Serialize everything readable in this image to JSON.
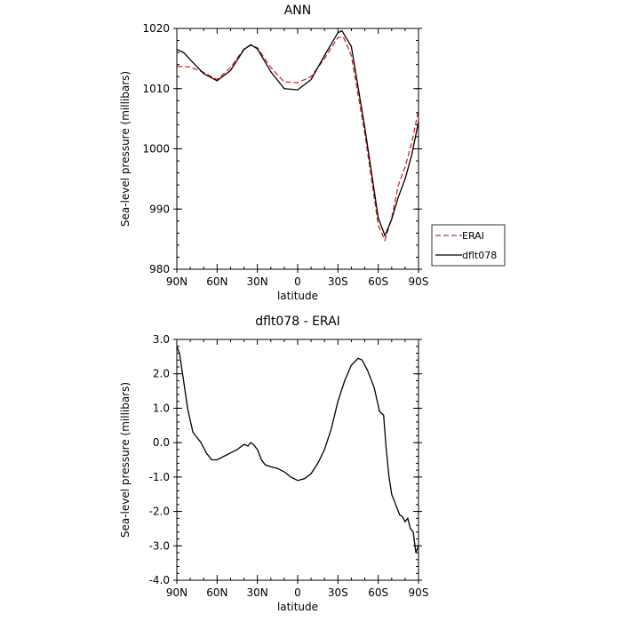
{
  "chart_data": [
    {
      "type": "line",
      "title": "ANN",
      "xlabel": "latitude",
      "ylabel": "Sea-level pressure (millibars)",
      "xlim": [
        -90,
        90
      ],
      "ylim": [
        980,
        1020
      ],
      "x_ticks": [
        -90,
        -60,
        -30,
        0,
        30,
        60,
        90
      ],
      "x_tick_labels": [
        "90N",
        "60N",
        "30N",
        "0",
        "30S",
        "60S",
        "90S"
      ],
      "y_ticks": [
        980,
        990,
        1000,
        1010,
        1020
      ],
      "y_tick_labels": [
        "980",
        "990",
        "1000",
        "1010",
        "1020"
      ],
      "legend": {
        "position": "right",
        "entries": [
          "ERAI",
          "dflt078"
        ]
      },
      "series": [
        {
          "name": "ERAI",
          "color": "#d62728",
          "dash": "dashed",
          "points": [
            [
              -90,
              1013.7
            ],
            [
              -80,
              1013.6
            ],
            [
              -70,
              1012.7
            ],
            [
              -60,
              1011.5
            ],
            [
              -50,
              1013.5
            ],
            [
              -40,
              1016.6
            ],
            [
              -35,
              1017.2
            ],
            [
              -30,
              1016.8
            ],
            [
              -20,
              1013.5
            ],
            [
              -10,
              1011.1
            ],
            [
              0,
              1011.0
            ],
            [
              10,
              1012.0
            ],
            [
              20,
              1015.0
            ],
            [
              30,
              1018.5
            ],
            [
              34,
              1018.6
            ],
            [
              40,
              1015.5
            ],
            [
              50,
              1002.5
            ],
            [
              60,
              987.3
            ],
            [
              65,
              984.8
            ],
            [
              70,
              988.5
            ],
            [
              75,
              994.0
            ],
            [
              80,
              997.0
            ],
            [
              85,
              1001.0
            ],
            [
              90,
              1006.5
            ]
          ]
        },
        {
          "name": "dflt078",
          "color": "#000000",
          "dash": "solid",
          "points": [
            [
              -90,
              1016.5
            ],
            [
              -85,
              1016.0
            ],
            [
              -80,
              1014.8
            ],
            [
              -70,
              1012.5
            ],
            [
              -60,
              1011.3
            ],
            [
              -50,
              1013.0
            ],
            [
              -40,
              1016.5
            ],
            [
              -35,
              1017.3
            ],
            [
              -30,
              1016.6
            ],
            [
              -20,
              1012.8
            ],
            [
              -10,
              1010.0
            ],
            [
              0,
              1009.8
            ],
            [
              10,
              1011.5
            ],
            [
              20,
              1015.5
            ],
            [
              30,
              1019.3
            ],
            [
              33,
              1019.6
            ],
            [
              40,
              1017.0
            ],
            [
              50,
              1003.5
            ],
            [
              60,
              988.5
            ],
            [
              65,
              985.6
            ],
            [
              70,
              988.3
            ],
            [
              75,
              992.0
            ],
            [
              80,
              995.0
            ],
            [
              85,
              999.0
            ],
            [
              90,
              1004.5
            ]
          ]
        }
      ]
    },
    {
      "type": "line",
      "title": "dflt078 - ERAI",
      "xlabel": "latitude",
      "ylabel": "Sea-level pressure (millibars)",
      "xlim": [
        -90,
        90
      ],
      "ylim": [
        -4,
        3
      ],
      "x_ticks": [
        -90,
        -60,
        -30,
        0,
        30,
        60,
        90
      ],
      "x_tick_labels": [
        "90N",
        "60N",
        "30N",
        "0",
        "30S",
        "60S",
        "90S"
      ],
      "y_ticks": [
        -4,
        -3,
        -2,
        -1,
        0,
        1,
        2,
        3
      ],
      "y_tick_labels": [
        "-4.0",
        "-3.0",
        "-2.0",
        "-1.0",
        "0.0",
        "1.0",
        "2.0",
        "3.0"
      ],
      "series": [
        {
          "color": "#000000",
          "dash": "solid",
          "points": [
            [
              -90,
              2.8
            ],
            [
              -88,
              2.6
            ],
            [
              -85,
              1.8
            ],
            [
              -82,
              1.0
            ],
            [
              -78,
              0.3
            ],
            [
              -72,
              0.0
            ],
            [
              -68,
              -0.3
            ],
            [
              -64,
              -0.5
            ],
            [
              -60,
              -0.5
            ],
            [
              -55,
              -0.4
            ],
            [
              -50,
              -0.3
            ],
            [
              -45,
              -0.2
            ],
            [
              -40,
              -0.05
            ],
            [
              -37,
              -0.1
            ],
            [
              -35,
              0.0
            ],
            [
              -33,
              -0.05
            ],
            [
              -30,
              -0.2
            ],
            [
              -27,
              -0.5
            ],
            [
              -24,
              -0.65
            ],
            [
              -20,
              -0.7
            ],
            [
              -15,
              -0.75
            ],
            [
              -10,
              -0.85
            ],
            [
              -5,
              -1.0
            ],
            [
              0,
              -1.1
            ],
            [
              5,
              -1.05
            ],
            [
              10,
              -0.9
            ],
            [
              15,
              -0.6
            ],
            [
              20,
              -0.2
            ],
            [
              25,
              0.4
            ],
            [
              30,
              1.2
            ],
            [
              35,
              1.8
            ],
            [
              40,
              2.25
            ],
            [
              45,
              2.45
            ],
            [
              48,
              2.4
            ],
            [
              52,
              2.1
            ],
            [
              57,
              1.6
            ],
            [
              61,
              0.9
            ],
            [
              64,
              0.8
            ],
            [
              66,
              -0.2
            ],
            [
              68,
              -1.0
            ],
            [
              70,
              -1.5
            ],
            [
              73,
              -1.8
            ],
            [
              76,
              -2.1
            ],
            [
              78,
              -2.15
            ],
            [
              80,
              -2.3
            ],
            [
              82,
              -2.2
            ],
            [
              84,
              -2.5
            ],
            [
              86,
              -2.6
            ],
            [
              88,
              -3.2
            ],
            [
              90,
              -3.0
            ]
          ]
        }
      ]
    }
  ]
}
